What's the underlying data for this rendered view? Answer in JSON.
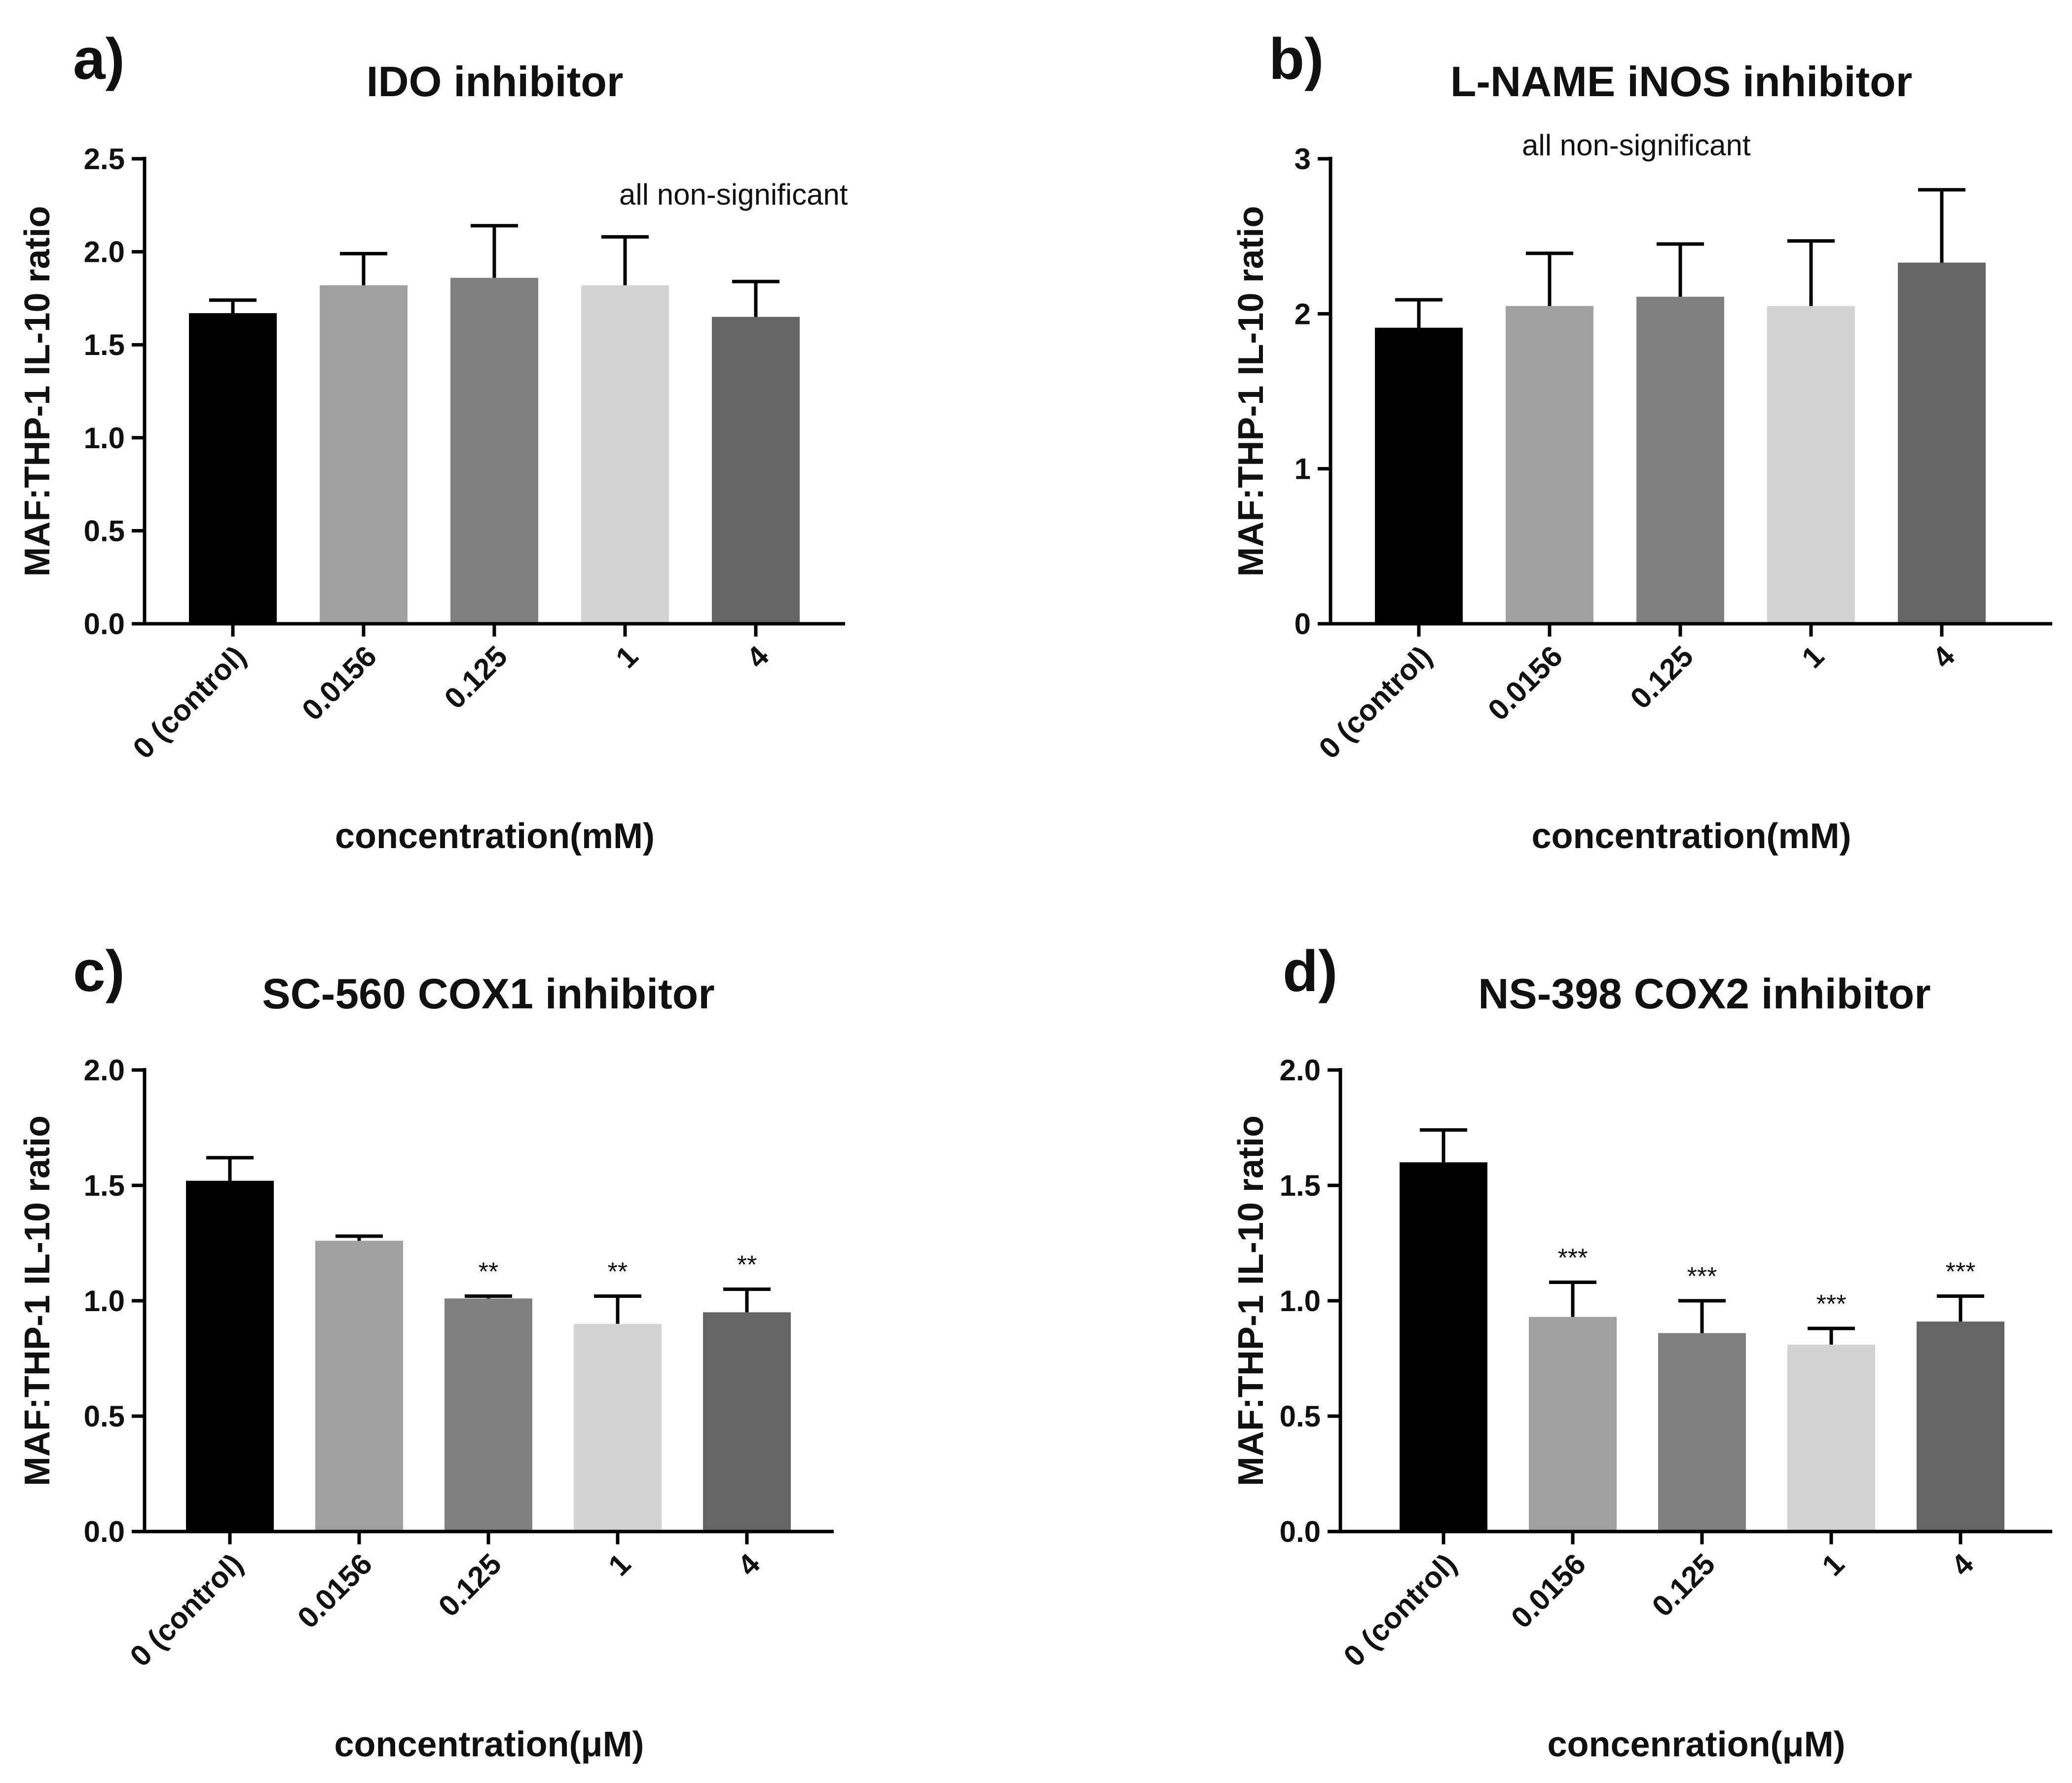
{
  "chart_data": [
    {
      "type": "bar",
      "panel": "a)",
      "title": "IDO inhibitor",
      "xlabel": "concentration(mM)",
      "ylabel": "MAF:THP-1 IL-10 ratio",
      "categories": [
        "0 (control)",
        "0.0156",
        "0.125",
        "1",
        "4"
      ],
      "values": [
        1.67,
        1.82,
        1.86,
        1.82,
        1.65
      ],
      "errors": [
        0.07,
        0.17,
        0.28,
        0.26,
        0.19
      ],
      "colors": [
        "#000000",
        "#a0a0a0",
        "#808080",
        "#d3d3d3",
        "#646464"
      ],
      "significance": [
        "",
        "",
        "",
        "",
        ""
      ],
      "annotation": "all non-significant",
      "ylim": [
        0,
        2.5
      ],
      "yticks": [
        0.0,
        0.5,
        1.0,
        1.5,
        2.0,
        2.5
      ],
      "ytick_labels": [
        "0.0",
        "0.5",
        "1.0",
        "1.5",
        "2.0",
        "2.5"
      ],
      "grid": false,
      "legend": "none"
    },
    {
      "type": "bar",
      "panel": "b)",
      "title": "L-NAME iNOS inhibitor",
      "xlabel": "concentration(mM)",
      "ylabel": "MAF:THP-1 IL-10 ratio",
      "categories": [
        "0 (control)",
        "0.0156",
        "0.125",
        "1",
        "4"
      ],
      "values": [
        1.91,
        2.05,
        2.11,
        2.05,
        2.33
      ],
      "errors": [
        0.18,
        0.34,
        0.34,
        0.42,
        0.47
      ],
      "colors": [
        "#000000",
        "#a0a0a0",
        "#808080",
        "#d3d3d3",
        "#646464"
      ],
      "significance": [
        "",
        "",
        "",
        "",
        ""
      ],
      "annotation": "all non-significant",
      "ylim": [
        0,
        3
      ],
      "yticks": [
        0,
        1,
        2,
        3
      ],
      "ytick_labels": [
        "0",
        "1",
        "2",
        "3"
      ],
      "grid": false,
      "legend": "none"
    },
    {
      "type": "bar",
      "panel": "c)",
      "title": "SC-560 COX1 inhibitor",
      "xlabel": "concentration(μM)",
      "ylabel": "MAF:THP-1 IL-10 ratio",
      "categories": [
        "0 (control)",
        "0.0156",
        "0.125",
        "1",
        "4"
      ],
      "values": [
        1.52,
        1.26,
        1.01,
        0.9,
        0.95
      ],
      "errors": [
        0.1,
        0.02,
        0.01,
        0.12,
        0.1
      ],
      "colors": [
        "#000000",
        "#a0a0a0",
        "#808080",
        "#d3d3d3",
        "#646464"
      ],
      "significance": [
        "",
        "",
        "**",
        "**",
        "**"
      ],
      "annotation": "",
      "ylim": [
        0,
        2.0
      ],
      "yticks": [
        0.0,
        0.5,
        1.0,
        1.5,
        2.0
      ],
      "ytick_labels": [
        "0.0",
        "0.5",
        "1.0",
        "1.5",
        "2.0"
      ],
      "grid": false,
      "legend": "none"
    },
    {
      "type": "bar",
      "panel": "d)",
      "title": "NS-398 COX2 inhibitor",
      "xlabel": "concenration(μM)",
      "ylabel": "MAF:THP-1 IL-10 ratio",
      "categories": [
        "0 (control)",
        "0.0156",
        "0.125",
        "1",
        "4"
      ],
      "values": [
        1.6,
        0.93,
        0.86,
        0.81,
        0.91
      ],
      "errors": [
        0.14,
        0.15,
        0.14,
        0.07,
        0.11
      ],
      "colors": [
        "#000000",
        "#a0a0a0",
        "#808080",
        "#d3d3d3",
        "#646464"
      ],
      "significance": [
        "",
        "***",
        "***",
        "***",
        "***"
      ],
      "annotation": "",
      "ylim": [
        0,
        2.0
      ],
      "yticks": [
        0.0,
        0.5,
        1.0,
        1.5,
        2.0
      ],
      "ytick_labels": [
        "0.0",
        "0.5",
        "1.0",
        "1.5",
        "2.0"
      ],
      "grid": false,
      "legend": "none"
    }
  ]
}
